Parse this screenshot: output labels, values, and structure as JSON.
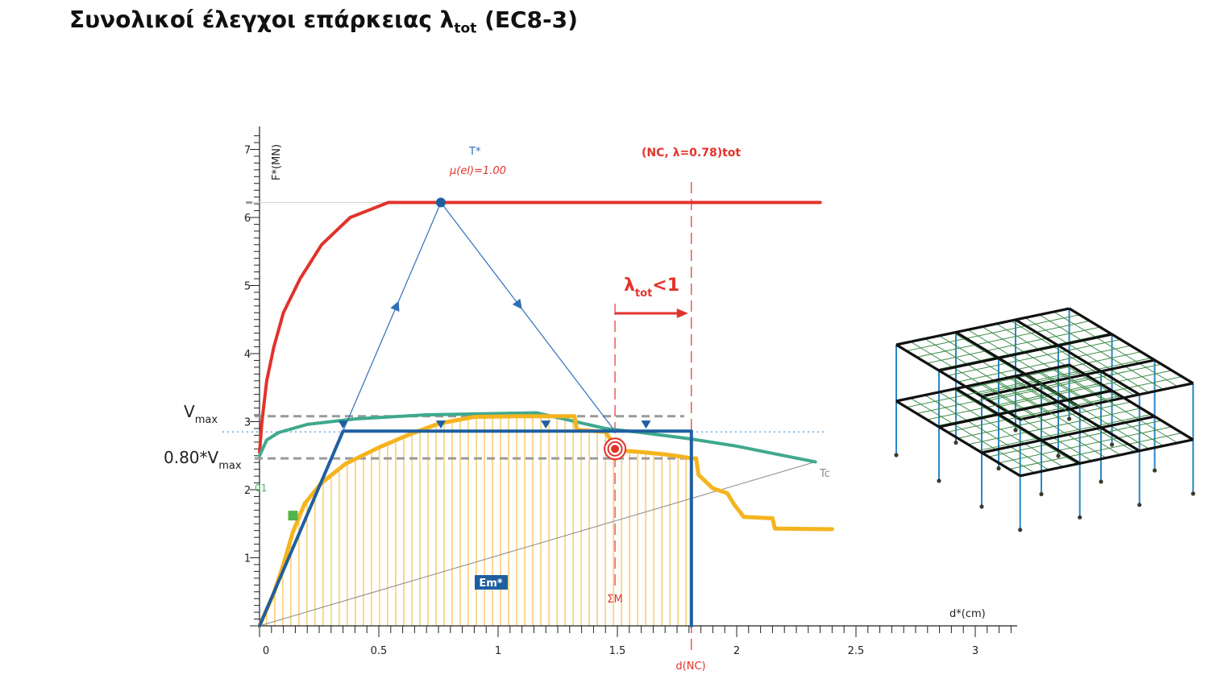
{
  "page": {
    "title_main": "Συνολικοί έλεγχοι επάρκειας λ",
    "title_sub": "tot",
    "title_end": " (EC8-3)"
  },
  "colors": {
    "capacity": "#f5b41e",
    "hatch": "#f5b41e",
    "bilinear": "#1f5fa0",
    "spectrum": "#e2332b",
    "green_curve": "#3fa98c",
    "demand_line": "#2f6fb8",
    "nc_line": "#e2332b",
    "ref_gray": "#9a9a9a"
  },
  "labels": {
    "y_axis": "F*(MN)",
    "x_axis": "d*(cm)",
    "vmax_main": "V",
    "vmax_sub": "max",
    "vmax80_main": "0.80*V",
    "vmax80_sub": "max",
    "t_star": "T*",
    "mu_el": "μ(el)=1.00",
    "nc_top": "(NC, λ=0.78)tot",
    "lambda_main": "λ",
    "lambda_sub": "tot",
    "lambda_end": "<1",
    "tc": "Tc",
    "em": "Em*",
    "sigma_m": "ΣΜ",
    "d_nc": "d(NC)",
    "green_marker": "01"
  },
  "chart_data": {
    "type": "line",
    "xlabel": "d*(cm)",
    "ylabel": "F*(MN)",
    "xlim": [
      0,
      3.15
    ],
    "ylim": [
      0,
      7.4
    ],
    "x_ticks": [
      "0",
      "0.5",
      "1",
      "1.5",
      "2",
      "2.5",
      "3"
    ],
    "y_ticks": [
      "1",
      "2",
      "3",
      "4",
      "5",
      "6",
      "7"
    ],
    "reference_values": {
      "Vmax": 3.08,
      "0.80*Vmax": 2.46,
      "SM_displacement": 1.49,
      "d_NC": 1.81,
      "lambda_tot": 0.78,
      "performance_level": 2.85
    },
    "series": [
      {
        "name": "capacity",
        "points": [
          [
            0,
            0
          ],
          [
            0.06,
            0.48
          ],
          [
            0.1,
            0.9
          ],
          [
            0.14,
            1.38
          ],
          [
            0.19,
            1.8
          ],
          [
            0.26,
            2.1
          ],
          [
            0.36,
            2.38
          ],
          [
            0.5,
            2.62
          ],
          [
            0.62,
            2.8
          ],
          [
            0.75,
            2.97
          ],
          [
            0.9,
            3.07
          ],
          [
            1.1,
            3.08
          ],
          [
            1.32,
            3.08
          ],
          [
            1.33,
            2.88
          ],
          [
            1.45,
            2.85
          ],
          [
            1.5,
            2.58
          ],
          [
            1.58,
            2.56
          ],
          [
            1.7,
            2.52
          ],
          [
            1.78,
            2.48
          ],
          [
            1.81,
            2.46
          ],
          [
            1.83,
            2.46
          ],
          [
            1.84,
            2.22
          ],
          [
            1.9,
            2.02
          ],
          [
            1.96,
            1.95
          ],
          [
            1.99,
            1.78
          ],
          [
            2.03,
            1.6
          ],
          [
            2.15,
            1.58
          ],
          [
            2.16,
            1.43
          ],
          [
            2.4,
            1.42
          ]
        ]
      },
      {
        "name": "bilinear",
        "points": [
          [
            0,
            0
          ],
          [
            0.35,
            2.86
          ],
          [
            1.81,
            2.86
          ],
          [
            1.81,
            0
          ]
        ]
      },
      {
        "name": "spectrum",
        "points": [
          [
            0,
            2.55
          ],
          [
            0.01,
            3.0
          ],
          [
            0.03,
            3.6
          ],
          [
            0.06,
            4.1
          ],
          [
            0.1,
            4.6
          ],
          [
            0.17,
            5.1
          ],
          [
            0.26,
            5.6
          ],
          [
            0.38,
            6.0
          ],
          [
            0.54,
            6.22
          ],
          [
            2.35,
            6.22
          ]
        ]
      },
      {
        "name": "green",
        "points": [
          [
            0,
            2.5
          ],
          [
            0.03,
            2.73
          ],
          [
            0.08,
            2.84
          ],
          [
            0.2,
            2.96
          ],
          [
            0.4,
            3.04
          ],
          [
            0.7,
            3.1
          ],
          [
            1.0,
            3.12
          ],
          [
            1.16,
            3.13
          ],
          [
            1.3,
            3.02
          ],
          [
            1.45,
            2.9
          ],
          [
            1.6,
            2.84
          ],
          [
            1.8,
            2.75
          ],
          [
            2.0,
            2.64
          ],
          [
            2.2,
            2.5
          ],
          [
            2.33,
            2.41
          ]
        ]
      },
      {
        "name": "demand",
        "points": [
          [
            0.35,
            2.86
          ],
          [
            0.76,
            6.22
          ],
          [
            1.49,
            2.86
          ]
        ]
      },
      {
        "name": "reference",
        "points": [
          [
            0,
            0
          ],
          [
            2.33,
            2.41
          ]
        ]
      }
    ]
  }
}
